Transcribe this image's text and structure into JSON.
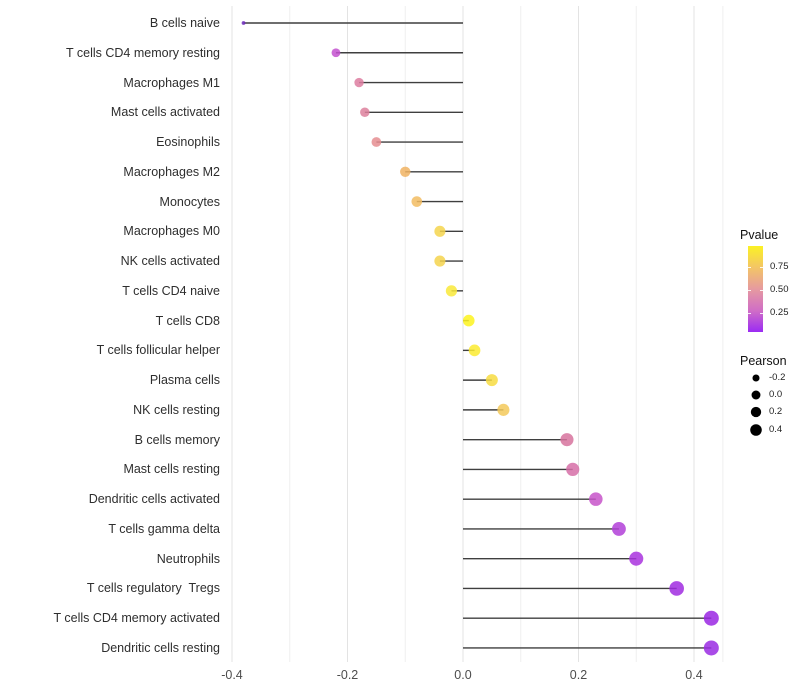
{
  "figure": {
    "background": "#ffffff",
    "grid_major_color": "#e3e3e3",
    "grid_minor_color": "#efefef",
    "stem_color": "#3f3f3f"
  },
  "chart_data": {
    "type": "bar",
    "subtype": "lollipop-horizontal",
    "title": "",
    "xlabel": "",
    "ylabel": "",
    "grid": true,
    "legend_position": "right",
    "xlim": [
      -0.45,
      0.45
    ],
    "x_ticks": [
      "-0.4",
      "-0.2",
      "0.0",
      "0.2",
      "0.4"
    ],
    "x_tick_values": [
      -0.4,
      -0.2,
      0.0,
      0.2,
      0.4
    ],
    "categories": [
      "B cells naive",
      "T cells CD4 memory resting",
      "Macrophages M1",
      "Mast cells activated",
      "Eosinophils",
      "Macrophages M2",
      "Monocytes",
      "Macrophages M0",
      "NK cells activated",
      "T cells CD4 naive",
      "T cells CD8",
      "T cells follicular helper",
      "Plasma cells",
      "NK cells resting",
      "B cells memory",
      "Mast cells resting",
      "Dendritic cells activated",
      "T cells gamma delta",
      "Neutrophils",
      "T cells regulatory  Tregs",
      "T cells CD4 memory activated",
      "Dendritic cells resting"
    ],
    "series": [
      {
        "name": "Pearson",
        "values": [
          -0.38,
          -0.22,
          -0.18,
          -0.17,
          -0.15,
          -0.1,
          -0.08,
          -0.04,
          -0.04,
          -0.02,
          0.01,
          0.02,
          0.05,
          0.07,
          0.18,
          0.19,
          0.23,
          0.27,
          0.3,
          0.37,
          0.43,
          0.43
        ]
      }
    ],
    "point_colors": [
      "#6d2abc",
      "#c351cf",
      "#dd7da0",
      "#dd809c",
      "#e58d90",
      "#f0b363",
      "#f2bc62",
      "#f4d54e",
      "#f4d34e",
      "#f9e93a",
      "#fdf31f",
      "#fbeb30",
      "#f7dc42",
      "#f3c95a",
      "#d7739d",
      "#d66fa7",
      "#c754c9",
      "#b23fd8",
      "#a933de",
      "#a02be1",
      "#9a27e3",
      "#9a2be3"
    ],
    "color_legend": {
      "title": "Pvalue",
      "tick_labels": [
        "0.75",
        "0.50",
        "0.25"
      ],
      "tick_values": [
        0.75,
        0.5,
        0.25
      ],
      "gradient_top_to_bottom": [
        "#fbf124",
        "#f3c566",
        "#e69aa0",
        "#d06ec6",
        "#9b2bf3"
      ]
    },
    "size_legend": {
      "title": "Pearson",
      "labels": [
        "-0.2",
        "0.0",
        "0.2",
        "0.4"
      ],
      "values": [
        -0.2,
        0.0,
        0.2,
        0.4
      ]
    }
  }
}
